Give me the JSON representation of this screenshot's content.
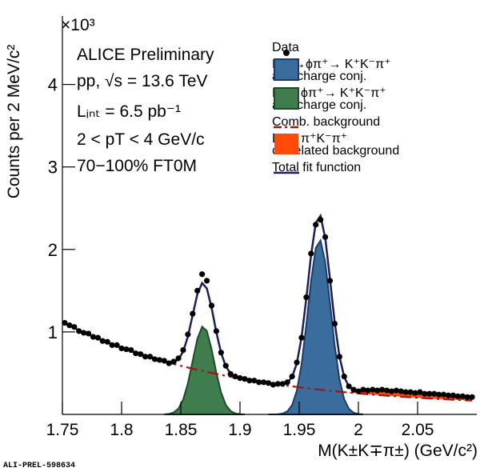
{
  "chart_data": {
    "type": "line",
    "y_multiplier": "×10³",
    "xlabel": "M(K±K∓π±) (GeV/c²)",
    "ylabel": "Counts per 2 MeV/c²",
    "footer": "ALI-PREL-598634",
    "annotations": [
      "ALICE Preliminary",
      "pp, √s = 13.6 TeV",
      "Lᵢₙₜ = 6.5 pb⁻¹",
      "2 < pT < 4 GeV/c",
      "70−100% FT0M"
    ],
    "xlim": [
      1.75,
      2.1
    ],
    "ylim": [
      0,
      4.83
    ],
    "xticks": [
      1.75,
      1.8,
      1.85,
      1.9,
      1.95,
      2,
      2.05
    ],
    "yticks": [
      1,
      2,
      3,
      4
    ],
    "x": [
      1.752,
      1.756,
      1.76,
      1.764,
      1.768,
      1.772,
      1.776,
      1.78,
      1.784,
      1.788,
      1.792,
      1.796,
      1.8,
      1.804,
      1.808,
      1.812,
      1.816,
      1.82,
      1.824,
      1.828,
      1.832,
      1.836,
      1.84,
      1.844,
      1.848,
      1.852,
      1.856,
      1.86,
      1.864,
      1.868,
      1.872,
      1.876,
      1.88,
      1.884,
      1.888,
      1.892,
      1.896,
      1.9,
      1.904,
      1.908,
      1.912,
      1.916,
      1.92,
      1.924,
      1.928,
      1.932,
      1.936,
      1.94,
      1.944,
      1.948,
      1.952,
      1.956,
      1.96,
      1.964,
      1.968,
      1.972,
      1.976,
      1.98,
      1.984,
      1.988,
      1.992,
      1.996,
      2.0,
      2.004,
      2.008,
      2.012,
      2.016,
      2.02,
      2.024,
      2.028,
      2.032,
      2.036,
      2.04,
      2.044,
      2.048,
      2.052,
      2.056,
      2.06,
      2.064,
      2.068,
      2.072,
      2.076,
      2.08,
      2.084,
      2.088,
      2.092,
      2.096
    ],
    "series": [
      {
        "name": "Data",
        "kind": "points",
        "color": "#000000",
        "values": [
          1.11,
          1.08,
          1.06,
          1.01,
          0.99,
          0.98,
          0.94,
          0.93,
          0.89,
          0.88,
          0.84,
          0.84,
          0.8,
          0.79,
          0.78,
          0.74,
          0.73,
          0.7,
          0.7,
          0.67,
          0.66,
          0.65,
          0.62,
          0.64,
          0.68,
          0.78,
          0.97,
          1.22,
          1.5,
          1.7,
          1.62,
          1.32,
          1.01,
          0.75,
          0.59,
          0.49,
          0.46,
          0.44,
          0.43,
          0.41,
          0.41,
          0.39,
          0.39,
          0.38,
          0.36,
          0.37,
          0.37,
          0.39,
          0.46,
          0.63,
          0.93,
          1.42,
          1.95,
          2.3,
          2.36,
          2.15,
          1.62,
          1.1,
          0.7,
          0.46,
          0.34,
          0.3,
          0.28,
          0.3,
          0.29,
          0.3,
          0.29,
          0.3,
          0.29,
          0.28,
          0.29,
          0.28,
          0.27,
          0.27,
          0.26,
          0.27,
          0.25,
          0.25,
          0.25,
          0.24,
          0.24,
          0.23,
          0.23,
          0.22,
          0.22,
          0.21,
          0.21
        ]
      },
      {
        "name": "Dₛ⁺→ϕπ⁺→ K⁺K⁻π⁺\nand charge conj.",
        "kind": "area",
        "color": "#3a6d9e",
        "edge": "#1b3a66",
        "values": [
          null,
          null,
          null,
          null,
          null,
          null,
          null,
          null,
          null,
          null,
          null,
          null,
          null,
          null,
          null,
          null,
          null,
          null,
          null,
          null,
          null,
          null,
          null,
          null,
          null,
          null,
          null,
          null,
          null,
          null,
          null,
          null,
          null,
          null,
          null,
          null,
          null,
          null,
          null,
          null,
          null,
          null,
          null,
          0,
          0,
          0.002,
          0.01,
          0.037,
          0.113,
          0.287,
          0.609,
          1.085,
          1.616,
          2.017,
          2.108,
          1.846,
          1.353,
          0.831,
          0.428,
          0.184,
          0.067,
          0.02,
          0.005,
          0,
          null,
          null,
          null,
          null,
          null,
          null,
          null,
          null,
          null,
          null,
          null,
          null,
          null,
          null,
          null,
          null,
          null,
          null,
          null,
          null,
          null,
          null,
          null
        ]
      },
      {
        "name": "D⁺→ϕπ⁺→ K⁺K⁻π⁺\nand charge conj.",
        "kind": "area",
        "color": "#3f7d4f",
        "edge": "#1f4a2a",
        "values": [
          null,
          null,
          null,
          null,
          null,
          null,
          null,
          null,
          null,
          null,
          null,
          null,
          null,
          null,
          null,
          null,
          null,
          null,
          null,
          null,
          null,
          0,
          0.006,
          0.023,
          0.07,
          0.18,
          0.377,
          0.649,
          0.917,
          1.064,
          1.012,
          0.791,
          0.507,
          0.267,
          0.115,
          0.041,
          0.012,
          0.003,
          0,
          null,
          null,
          null,
          null,
          null,
          null,
          null,
          null,
          null,
          null,
          null,
          null,
          null,
          null,
          null,
          null,
          null,
          null,
          null,
          null,
          null,
          null,
          null,
          null,
          null,
          null,
          null,
          null,
          null,
          null,
          null,
          null,
          null,
          null,
          null,
          null,
          null,
          null,
          null,
          null,
          null,
          null,
          null,
          null,
          null,
          null,
          null,
          null
        ]
      },
      {
        "name": "Comb. background",
        "kind": "dashed",
        "color": "#a01414",
        "values": [
          1.105,
          1.076,
          1.048,
          1.021,
          0.994,
          0.969,
          0.944,
          0.919,
          0.896,
          0.873,
          0.85,
          0.829,
          0.808,
          0.787,
          0.767,
          0.748,
          0.729,
          0.711,
          0.693,
          0.676,
          0.659,
          0.643,
          0.627,
          0.611,
          0.596,
          0.582,
          0.568,
          0.554,
          0.541,
          0.528,
          0.515,
          0.503,
          0.491,
          0.479,
          0.468,
          0.457,
          0.446,
          0.436,
          0.426,
          0.416,
          0.407,
          0.398,
          0.389,
          0.38,
          0.372,
          0.363,
          0.355,
          0.348,
          0.34,
          0.333,
          0.326,
          0.319,
          0.312,
          0.305,
          0.299,
          0.293,
          0.287,
          0.281,
          0.275,
          0.27,
          0.265,
          0.259,
          0.254,
          0.249,
          0.245,
          0.24,
          0.235,
          0.231,
          0.227,
          0.223,
          0.219,
          0.215,
          0.211,
          0.207,
          0.204,
          0.2,
          0.197,
          0.193,
          0.19,
          0.187,
          0.184,
          0.181,
          0.178,
          0.176,
          0.173,
          0.17,
          0.168
        ]
      },
      {
        "name": "D⁺→π⁺K⁻π⁺\ncorrelated background",
        "kind": "band",
        "color": "#ff4a0a",
        "stack_on": 3,
        "values": [
          null,
          null,
          null,
          null,
          null,
          null,
          null,
          null,
          null,
          null,
          null,
          null,
          null,
          null,
          null,
          null,
          null,
          null,
          null,
          null,
          null,
          null,
          null,
          null,
          null,
          null,
          null,
          null,
          null,
          null,
          null,
          null,
          null,
          null,
          null,
          null,
          null,
          null,
          null,
          null,
          null,
          null,
          null,
          null,
          null,
          null,
          null,
          null,
          null,
          null,
          null,
          null,
          null,
          null,
          null,
          null,
          null,
          null,
          null,
          null,
          0.005,
          0.015,
          0.03,
          0.045,
          0.055,
          0.06,
          0.062,
          0.064,
          0.065,
          0.065,
          0.065,
          0.065,
          0.065,
          0.064,
          0.063,
          0.062,
          0.06,
          0.058,
          0.056,
          0.054,
          0.052,
          0.05,
          0.048,
          0.046,
          0.044,
          0.042,
          0.04
        ]
      },
      {
        "name": "Total fit function",
        "kind": "line",
        "color": "#1a1f5c",
        "values": [
          1.105,
          1.076,
          1.048,
          1.021,
          0.994,
          0.969,
          0.944,
          0.919,
          0.896,
          0.873,
          0.85,
          0.829,
          0.808,
          0.787,
          0.767,
          0.748,
          0.729,
          0.711,
          0.693,
          0.676,
          0.659,
          0.643,
          0.633,
          0.634,
          0.666,
          0.762,
          0.945,
          1.203,
          1.458,
          1.592,
          1.527,
          1.294,
          0.998,
          0.746,
          0.583,
          0.498,
          0.458,
          0.439,
          0.426,
          0.416,
          0.407,
          0.398,
          0.389,
          0.38,
          0.372,
          0.365,
          0.365,
          0.385,
          0.453,
          0.62,
          0.935,
          1.404,
          1.928,
          2.322,
          2.407,
          2.139,
          1.64,
          1.112,
          0.703,
          0.454,
          0.337,
          0.294,
          0.289,
          0.294,
          0.3,
          0.3,
          0.297,
          0.295,
          0.292,
          0.288,
          0.284,
          0.28,
          0.276,
          0.271,
          0.267,
          0.262,
          0.257,
          0.251,
          0.246,
          0.241,
          0.236,
          0.231,
          0.226,
          0.222,
          0.217,
          0.212,
          0.208
        ]
      }
    ]
  }
}
